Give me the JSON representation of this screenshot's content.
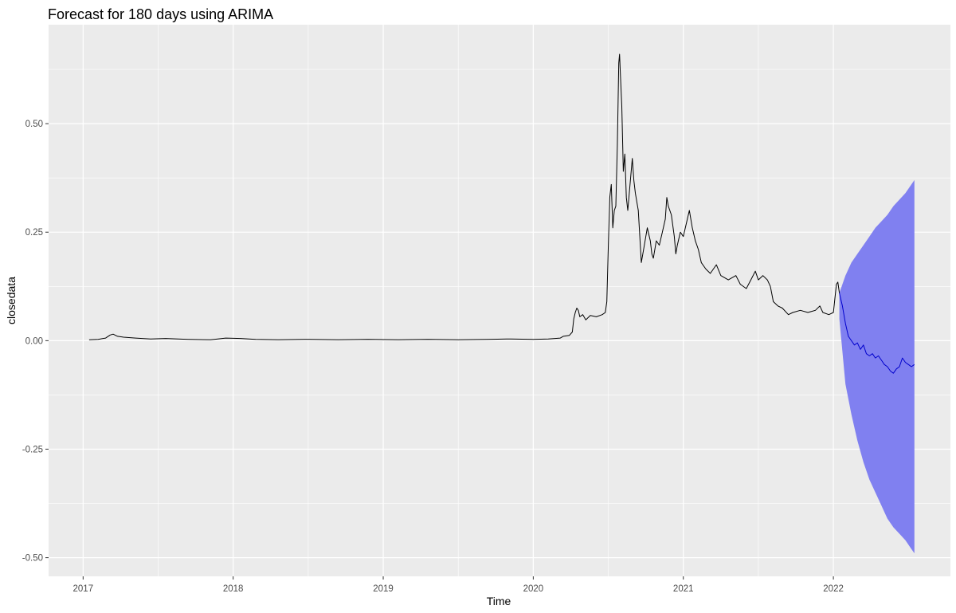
{
  "chart_data": {
    "type": "line",
    "title": "Forecast for 180 days using ARIMA",
    "xlabel": "Time",
    "ylabel": "closedata",
    "xlim": [
      2016.77,
      2022.78
    ],
    "ylim": [
      -0.543,
      0.728
    ],
    "x_ticks": [
      2017,
      2018,
      2019,
      2020,
      2021,
      2022
    ],
    "x_tick_labels": [
      "2017",
      "2018",
      "2019",
      "2020",
      "2021",
      "2022"
    ],
    "y_ticks": [
      0.5,
      0.25,
      0.0,
      -0.25,
      -0.5
    ],
    "y_tick_labels": [
      "0.50",
      "0.25",
      "0.00",
      "-0.25",
      "-0.50"
    ],
    "grid": true,
    "legend": "none",
    "colors": {
      "panel": "#ebebeb",
      "grid": "#ffffff",
      "series": "#000000",
      "forecast": "#0000cc",
      "interval": "#8080f0"
    },
    "series": [
      {
        "values": [
          [
            2017.04,
            0.002
          ],
          [
            2017.1,
            0.003
          ],
          [
            2017.15,
            0.006
          ],
          [
            2017.18,
            0.013
          ],
          [
            2017.2,
            0.015
          ],
          [
            2017.23,
            0.01
          ],
          [
            2017.27,
            0.008
          ],
          [
            2017.35,
            0.006
          ],
          [
            2017.45,
            0.004
          ],
          [
            2017.55,
            0.005
          ],
          [
            2017.7,
            0.003
          ],
          [
            2017.85,
            0.002
          ],
          [
            2017.95,
            0.006
          ],
          [
            2018.05,
            0.005
          ],
          [
            2018.15,
            0.003
          ],
          [
            2018.3,
            0.002
          ],
          [
            2018.5,
            0.003
          ],
          [
            2018.7,
            0.002
          ],
          [
            2018.9,
            0.003
          ],
          [
            2019.1,
            0.002
          ],
          [
            2019.3,
            0.003
          ],
          [
            2019.5,
            0.002
          ],
          [
            2019.7,
            0.003
          ],
          [
            2019.85,
            0.004
          ],
          [
            2020.0,
            0.003
          ],
          [
            2020.1,
            0.004
          ],
          [
            2020.18,
            0.006
          ],
          [
            2020.2,
            0.01
          ],
          [
            2020.24,
            0.012
          ],
          [
            2020.26,
            0.02
          ],
          [
            2020.27,
            0.05
          ],
          [
            2020.28,
            0.065
          ],
          [
            2020.29,
            0.075
          ],
          [
            2020.3,
            0.07
          ],
          [
            2020.31,
            0.055
          ],
          [
            2020.33,
            0.06
          ],
          [
            2020.35,
            0.048
          ],
          [
            2020.38,
            0.058
          ],
          [
            2020.42,
            0.055
          ],
          [
            2020.46,
            0.06
          ],
          [
            2020.48,
            0.065
          ],
          [
            2020.49,
            0.09
          ],
          [
            2020.5,
            0.22
          ],
          [
            2020.51,
            0.33
          ],
          [
            2020.52,
            0.36
          ],
          [
            2020.53,
            0.26
          ],
          [
            2020.54,
            0.3
          ],
          [
            2020.55,
            0.31
          ],
          [
            2020.56,
            0.45
          ],
          [
            2020.57,
            0.64
          ],
          [
            2020.575,
            0.66
          ],
          [
            2020.58,
            0.62
          ],
          [
            2020.59,
            0.54
          ],
          [
            2020.6,
            0.39
          ],
          [
            2020.61,
            0.43
          ],
          [
            2020.62,
            0.33
          ],
          [
            2020.63,
            0.3
          ],
          [
            2020.64,
            0.34
          ],
          [
            2020.66,
            0.42
          ],
          [
            2020.67,
            0.37
          ],
          [
            2020.68,
            0.34
          ],
          [
            2020.7,
            0.3
          ],
          [
            2020.71,
            0.24
          ],
          [
            2020.72,
            0.18
          ],
          [
            2020.74,
            0.22
          ],
          [
            2020.76,
            0.26
          ],
          [
            2020.78,
            0.23
          ],
          [
            2020.79,
            0.2
          ],
          [
            2020.8,
            0.19
          ],
          [
            2020.82,
            0.23
          ],
          [
            2020.84,
            0.22
          ],
          [
            2020.86,
            0.25
          ],
          [
            2020.88,
            0.28
          ],
          [
            2020.89,
            0.33
          ],
          [
            2020.9,
            0.31
          ],
          [
            2020.92,
            0.29
          ],
          [
            2020.94,
            0.24
          ],
          [
            2020.95,
            0.2
          ],
          [
            2020.96,
            0.22
          ],
          [
            2020.98,
            0.25
          ],
          [
            2021.0,
            0.24
          ],
          [
            2021.02,
            0.27
          ],
          [
            2021.04,
            0.3
          ],
          [
            2021.06,
            0.26
          ],
          [
            2021.08,
            0.23
          ],
          [
            2021.1,
            0.21
          ],
          [
            2021.12,
            0.18
          ],
          [
            2021.15,
            0.165
          ],
          [
            2021.18,
            0.155
          ],
          [
            2021.22,
            0.175
          ],
          [
            2021.25,
            0.15
          ],
          [
            2021.3,
            0.14
          ],
          [
            2021.35,
            0.15
          ],
          [
            2021.38,
            0.13
          ],
          [
            2021.42,
            0.12
          ],
          [
            2021.45,
            0.14
          ],
          [
            2021.48,
            0.16
          ],
          [
            2021.5,
            0.14
          ],
          [
            2021.53,
            0.15
          ],
          [
            2021.56,
            0.14
          ],
          [
            2021.58,
            0.125
          ],
          [
            2021.6,
            0.09
          ],
          [
            2021.63,
            0.08
          ],
          [
            2021.66,
            0.075
          ],
          [
            2021.7,
            0.06
          ],
          [
            2021.73,
            0.065
          ],
          [
            2021.78,
            0.07
          ],
          [
            2021.83,
            0.065
          ],
          [
            2021.88,
            0.07
          ],
          [
            2021.91,
            0.08
          ],
          [
            2021.93,
            0.065
          ],
          [
            2021.97,
            0.06
          ],
          [
            2022.0,
            0.065
          ],
          [
            2022.02,
            0.13
          ],
          [
            2022.03,
            0.135
          ],
          [
            2022.04,
            0.11
          ]
        ]
      },
      {
        "values": [
          [
            2022.04,
            0.11
          ],
          [
            2022.06,
            0.08
          ],
          [
            2022.08,
            0.04
          ],
          [
            2022.1,
            0.01
          ],
          [
            2022.12,
            0.0
          ],
          [
            2022.14,
            -0.01
          ],
          [
            2022.16,
            -0.005
          ],
          [
            2022.18,
            -0.02
          ],
          [
            2022.2,
            -0.01
          ],
          [
            2022.22,
            -0.03
          ],
          [
            2022.24,
            -0.035
          ],
          [
            2022.26,
            -0.03
          ],
          [
            2022.28,
            -0.04
          ],
          [
            2022.3,
            -0.035
          ],
          [
            2022.32,
            -0.045
          ],
          [
            2022.34,
            -0.055
          ],
          [
            2022.36,
            -0.06
          ],
          [
            2022.38,
            -0.07
          ],
          [
            2022.4,
            -0.075
          ],
          [
            2022.42,
            -0.065
          ],
          [
            2022.44,
            -0.06
          ],
          [
            2022.46,
            -0.04
          ],
          [
            2022.48,
            -0.05
          ],
          [
            2022.5,
            -0.055
          ],
          [
            2022.52,
            -0.06
          ],
          [
            2022.54,
            -0.055
          ]
        ]
      }
    ],
    "interval_band": {
      "x": [
        2022.04,
        2022.08,
        2022.12,
        2022.16,
        2022.2,
        2022.24,
        2022.28,
        2022.32,
        2022.36,
        2022.4,
        2022.44,
        2022.48,
        2022.52,
        2022.54
      ],
      "upper": [
        0.11,
        0.15,
        0.18,
        0.2,
        0.22,
        0.24,
        0.26,
        0.275,
        0.29,
        0.31,
        0.325,
        0.34,
        0.36,
        0.37
      ],
      "lower": [
        0.05,
        -0.1,
        -0.17,
        -0.23,
        -0.28,
        -0.32,
        -0.35,
        -0.38,
        -0.41,
        -0.43,
        -0.445,
        -0.46,
        -0.48,
        -0.49
      ]
    }
  }
}
